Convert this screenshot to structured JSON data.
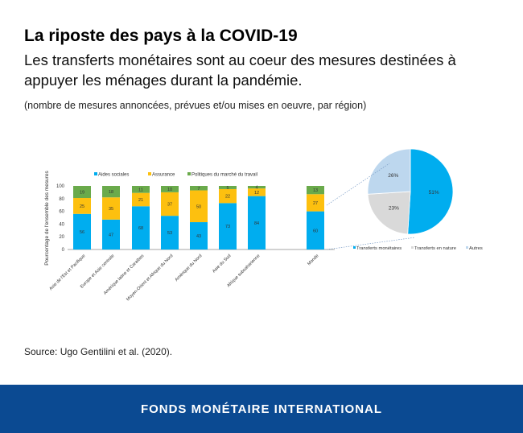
{
  "header": {
    "title": "La riposte des pays à la COVID-19",
    "subtitle": "Les transferts monétaires sont au coeur des mesures destinées à appuyer les ménages durant la pandémie.",
    "note": "(nombre de mesures annoncées, prévues et/ou mises en oeuvre, par région)"
  },
  "source": "Source: Ugo Gentilini et al. (2020).",
  "footer": "FONDS MONÉTAIRE INTERNATIONAL",
  "chart_data": [
    {
      "type": "bar",
      "stacked": true,
      "ylabel": "Pourcentage de l'ensemble des mesures",
      "ylim": [
        0,
        100
      ],
      "yticks": [
        "0",
        "20",
        "40",
        "60",
        "80",
        "100"
      ],
      "categories": [
        "Asie de l'Est et Pacifique",
        "Europe et Asie centrale",
        "Amérique latine et Caraïbes",
        "Moyen-Orient et Afrique du Nord",
        "Amérique du Nord",
        "Asie du Sud",
        "Afrique subsaharienne",
        "Monde"
      ],
      "series": [
        {
          "name": "Aides sociales",
          "color": "#00adef",
          "values": [
            56,
            47,
            68,
            53,
            43,
            73,
            84,
            60
          ]
        },
        {
          "name": "Assurance",
          "color": "#fdc00f",
          "values": [
            25,
            35,
            21,
            37,
            50,
            22,
            12,
            27
          ]
        },
        {
          "name": "Politiques du marché du travail",
          "color": "#6aaa4b",
          "values": [
            19,
            18,
            11,
            10,
            7,
            5,
            4,
            13
          ]
        }
      ],
      "legend": "top"
    },
    {
      "type": "pie",
      "labels": [
        "Transferts monétaires",
        "Transferts en nature",
        "Autres"
      ],
      "values": [
        51,
        23,
        26
      ],
      "value_labels": [
        "51%",
        "23%",
        "26%"
      ],
      "colors": [
        "#00adef",
        "#d9d9d9",
        "#bdd7ee"
      ],
      "legend": "bottom"
    }
  ]
}
